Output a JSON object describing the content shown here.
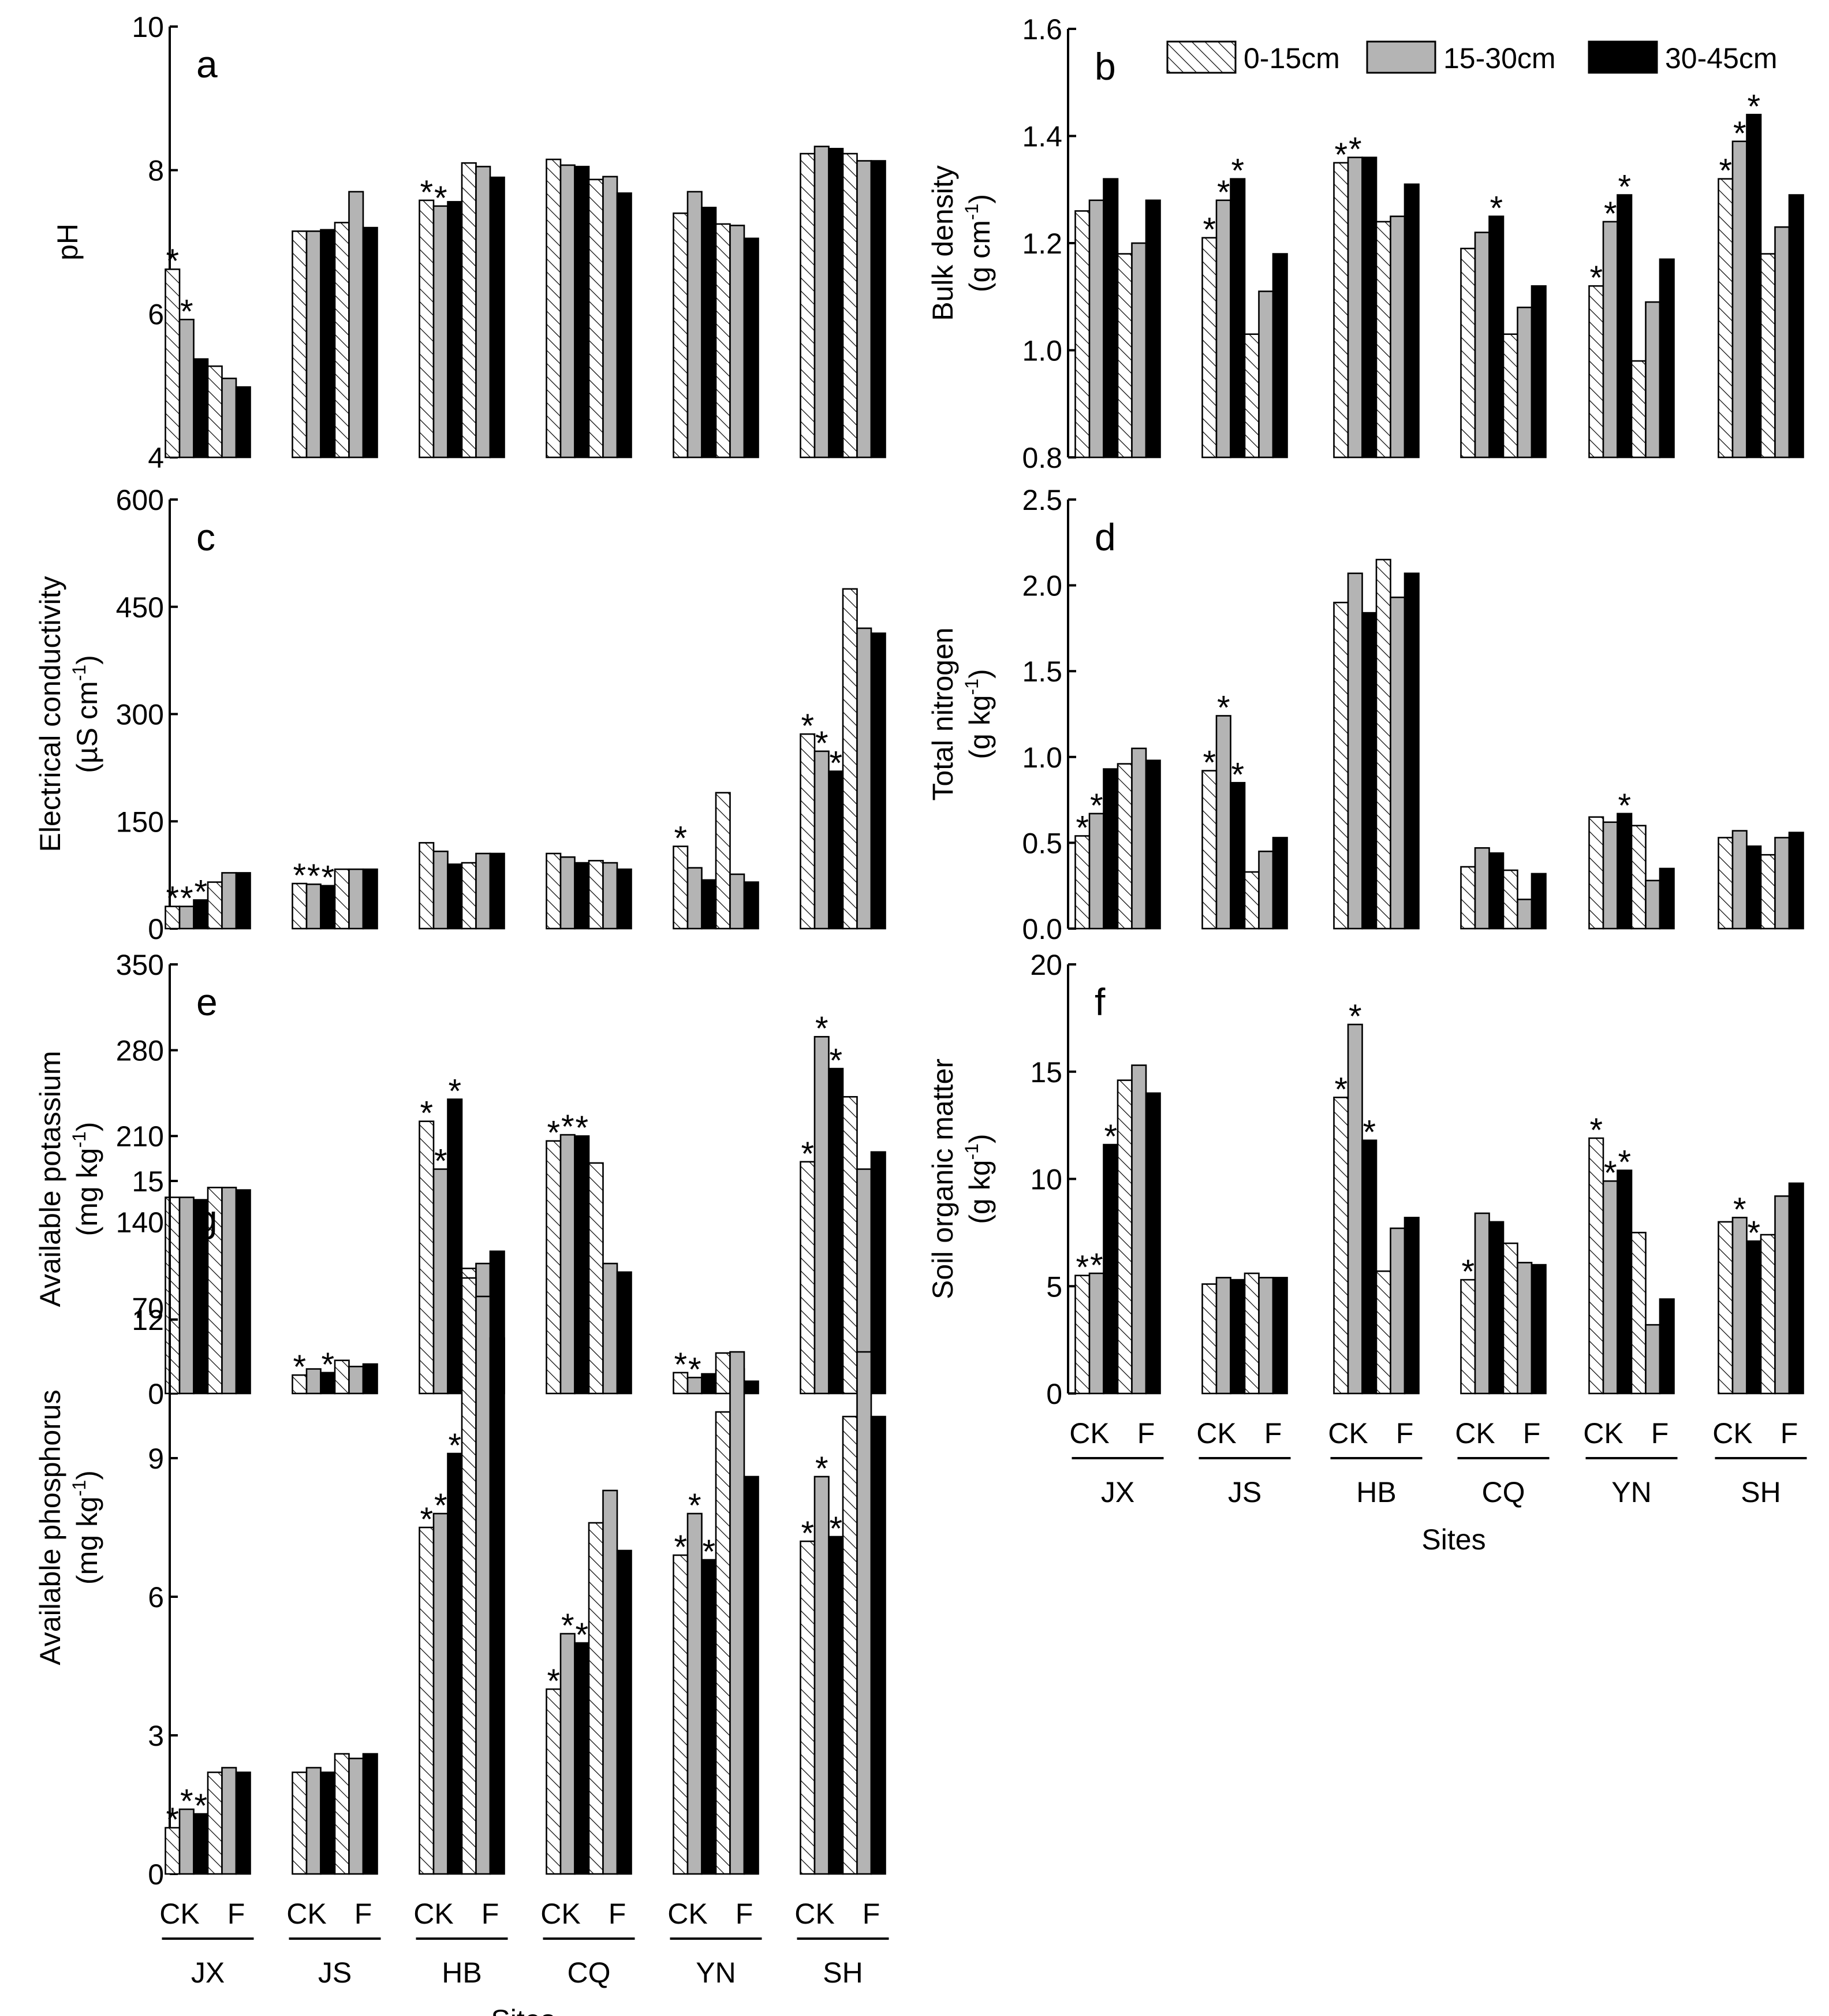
{
  "figure": {
    "xlabel": "Sites",
    "sites": [
      "JX",
      "JS",
      "HB",
      "CQ",
      "YN",
      "SH"
    ],
    "treatments": [
      "CK",
      "F"
    ]
  },
  "legend": {
    "entries": [
      {
        "label": "0-15cm",
        "fill": "hatch"
      },
      {
        "label": "15-30cm",
        "fill": "#b4b4b4"
      },
      {
        "label": "30-45cm",
        "fill": "#000000"
      }
    ]
  },
  "colors": {
    "hatch_bg": "#ffffff",
    "hatch_line": "#000000",
    "mid": "#b4b4b4",
    "deep": "#000000"
  },
  "chart_data": [
    {
      "id": "a",
      "panel_label": "a",
      "type": "bar",
      "ylabel": "pH",
      "ylabel_unit": "",
      "ylim": [
        4,
        10
      ],
      "yticks": [
        4,
        6,
        8,
        10
      ],
      "tick_labels": [
        "4",
        "6",
        "8",
        "10"
      ],
      "series_names": [
        "0-15cm",
        "15-30cm",
        "30-45cm"
      ],
      "values": {
        "JX": {
          "CK": [
            6.62,
            5.92,
            5.37
          ],
          "F": [
            5.27,
            5.1,
            4.98
          ]
        },
        "JS": {
          "CK": [
            7.15,
            7.15,
            7.17
          ],
          "F": [
            7.27,
            7.7,
            7.2
          ]
        },
        "HB": {
          "CK": [
            7.58,
            7.5,
            7.56
          ],
          "F": [
            8.1,
            8.05,
            7.9
          ]
        },
        "CQ": {
          "CK": [
            8.15,
            8.07,
            8.05
          ],
          "F": [
            7.87,
            7.91,
            7.68
          ]
        },
        "YN": {
          "CK": [
            7.4,
            7.7,
            7.48
          ],
          "F": [
            7.25,
            7.23,
            7.05
          ]
        },
        "SH": {
          "CK": [
            8.23,
            8.33,
            8.3
          ],
          "F": [
            8.23,
            8.13,
            8.13
          ]
        }
      },
      "significant": {
        "JX": [
          true,
          true,
          false
        ],
        "JS": [
          false,
          false,
          false
        ],
        "HB": [
          true,
          true,
          false
        ],
        "CQ": [
          false,
          false,
          false
        ],
        "YN": [
          false,
          false,
          false
        ],
        "SH": [
          false,
          false,
          false
        ]
      },
      "show_xaxis": false
    },
    {
      "id": "b",
      "panel_label": "b",
      "type": "bar",
      "ylabel": "Bulk density",
      "ylabel_unit": "(g cm",
      "ylabel_sup": "-1",
      "ylabel_close": ")",
      "ylim": [
        0.8,
        1.6
      ],
      "yticks": [
        0.8,
        1.0,
        1.2,
        1.4,
        1.6
      ],
      "tick_labels": [
        "0.8",
        "1.0",
        "1.2",
        "1.4",
        "1.6"
      ],
      "series_names": [
        "0-15cm",
        "15-30cm",
        "30-45cm"
      ],
      "values": {
        "JX": {
          "CK": [
            1.26,
            1.28,
            1.32
          ],
          "F": [
            1.18,
            1.2,
            1.28
          ]
        },
        "JS": {
          "CK": [
            1.21,
            1.28,
            1.32
          ],
          "F": [
            1.03,
            1.11,
            1.18
          ]
        },
        "HB": {
          "CK": [
            1.35,
            1.36,
            1.36
          ],
          "F": [
            1.24,
            1.25,
            1.31
          ]
        },
        "CQ": {
          "CK": [
            1.19,
            1.22,
            1.25
          ],
          "F": [
            1.03,
            1.08,
            1.12
          ]
        },
        "YN": {
          "CK": [
            1.12,
            1.24,
            1.29
          ],
          "F": [
            0.98,
            1.09,
            1.17
          ]
        },
        "SH": {
          "CK": [
            1.32,
            1.39,
            1.44
          ],
          "F": [
            1.18,
            1.23,
            1.29
          ]
        }
      },
      "significant": {
        "JX": [
          false,
          false,
          false
        ],
        "JS": [
          true,
          true,
          true
        ],
        "HB": [
          true,
          true,
          false
        ],
        "CQ": [
          false,
          false,
          true
        ],
        "YN": [
          true,
          true,
          true
        ],
        "SH": [
          true,
          true,
          true
        ]
      },
      "show_xaxis": false
    },
    {
      "id": "c",
      "panel_label": "c",
      "type": "bar",
      "ylabel": "Electrical conductivity",
      "ylabel_unit": "(µS cm",
      "ylabel_sup": "-1",
      "ylabel_close": ")",
      "ylim": [
        0,
        600
      ],
      "yticks": [
        0,
        150,
        300,
        450,
        600
      ],
      "tick_labels": [
        "0",
        "150",
        "300",
        "450",
        "600"
      ],
      "series_names": [
        "0-15cm",
        "15-30cm",
        "30-45cm"
      ],
      "values": {
        "JX": {
          "CK": [
            31,
            31,
            40
          ],
          "F": [
            65,
            78,
            78
          ]
        },
        "JS": {
          "CK": [
            63,
            62,
            60
          ],
          "F": [
            83,
            83,
            83
          ]
        },
        "HB": {
          "CK": [
            120,
            108,
            90
          ],
          "F": [
            92,
            105,
            105
          ]
        },
        "CQ": {
          "CK": [
            105,
            100,
            92
          ],
          "F": [
            95,
            92,
            83
          ]
        },
        "YN": {
          "CK": [
            115,
            85,
            68
          ],
          "F": [
            190,
            76,
            65
          ]
        },
        "SH": {
          "CK": [
            272,
            248,
            220
          ],
          "F": [
            475,
            420,
            413
          ]
        }
      },
      "significant": {
        "JX": [
          true,
          true,
          true
        ],
        "JS": [
          true,
          true,
          true
        ],
        "HB": [
          false,
          false,
          false
        ],
        "CQ": [
          false,
          false,
          false
        ],
        "YN": [
          true,
          false,
          false
        ],
        "SH": [
          true,
          true,
          true
        ]
      },
      "show_xaxis": false
    },
    {
      "id": "d",
      "panel_label": "d",
      "type": "bar",
      "ylabel": "Total nitrogen",
      "ylabel_unit": "(g kg",
      "ylabel_sup": "-1",
      "ylabel_close": ")",
      "ylim": [
        0,
        2.5
      ],
      "yticks": [
        0,
        0.5,
        1.0,
        1.5,
        2.0,
        2.5
      ],
      "tick_labels": [
        "0.0",
        "0.5",
        "1.0",
        "1.5",
        "2.0",
        "2.5"
      ],
      "series_names": [
        "0-15cm",
        "15-30cm",
        "30-45cm"
      ],
      "values": {
        "JX": {
          "CK": [
            0.54,
            0.67,
            0.93
          ],
          "F": [
            0.96,
            1.05,
            0.98
          ]
        },
        "JS": {
          "CK": [
            0.92,
            1.24,
            0.85
          ],
          "F": [
            0.33,
            0.45,
            0.53
          ]
        },
        "HB": {
          "CK": [
            1.9,
            2.07,
            1.84
          ],
          "F": [
            2.15,
            1.93,
            2.07
          ]
        },
        "CQ": {
          "CK": [
            0.36,
            0.47,
            0.44
          ],
          "F": [
            0.34,
            0.17,
            0.32
          ]
        },
        "YN": {
          "CK": [
            0.65,
            0.62,
            0.67
          ],
          "F": [
            0.6,
            0.28,
            0.35
          ]
        },
        "SH": {
          "CK": [
            0.53,
            0.57,
            0.48
          ],
          "F": [
            0.43,
            0.53,
            0.56
          ]
        }
      },
      "significant": {
        "JX": [
          true,
          true,
          false
        ],
        "JS": [
          true,
          true,
          true
        ],
        "HB": [
          false,
          false,
          false
        ],
        "CQ": [
          false,
          false,
          false
        ],
        "YN": [
          false,
          false,
          true
        ],
        "SH": [
          false,
          false,
          false
        ]
      },
      "show_xaxis": false
    },
    {
      "id": "e",
      "panel_label": "e",
      "type": "bar",
      "ylabel": "Available potassium",
      "ylabel_unit": "(mg kg",
      "ylabel_sup": "-1",
      "ylabel_close": ")",
      "ylim": [
        0,
        350
      ],
      "yticks": [
        0,
        70,
        140,
        210,
        280,
        350
      ],
      "tick_labels": [
        "0",
        "70",
        "140",
        "210",
        "280",
        "350"
      ],
      "series_names": [
        "0-15cm",
        "15-30cm",
        "30-45cm"
      ],
      "values": {
        "JX": {
          "CK": [
            160,
            160,
            158
          ],
          "F": [
            168,
            168,
            166
          ]
        },
        "JS": {
          "CK": [
            15,
            20,
            17
          ],
          "F": [
            27,
            22,
            24
          ]
        },
        "HB": {
          "CK": [
            222,
            183,
            240
          ],
          "F": [
            102,
            106,
            116
          ]
        },
        "CQ": {
          "CK": [
            206,
            211,
            210
          ],
          "F": [
            188,
            106,
            99
          ]
        },
        "YN": {
          "CK": [
            17,
            13,
            16
          ],
          "F": [
            33,
            20,
            10
          ]
        },
        "SH": {
          "CK": [
            189,
            291,
            265
          ],
          "F": [
            242,
            183,
            197
          ]
        }
      },
      "significant": {
        "JX": [
          false,
          false,
          false
        ],
        "JS": [
          true,
          false,
          true
        ],
        "HB": [
          true,
          true,
          true
        ],
        "CQ": [
          true,
          true,
          true
        ],
        "YN": [
          true,
          true,
          false
        ],
        "SH": [
          true,
          true,
          true
        ]
      },
      "show_xaxis": false
    },
    {
      "id": "f",
      "panel_label": "f",
      "type": "bar",
      "ylabel": "Soil organic matter",
      "ylabel_unit": "(g kg",
      "ylabel_sup": "-1",
      "ylabel_close": ")",
      "ylim": [
        0,
        20
      ],
      "yticks": [
        0,
        5,
        10,
        15,
        20
      ],
      "tick_labels": [
        "0",
        "5",
        "10",
        "15",
        "20"
      ],
      "series_names": [
        "0-15cm",
        "15-30cm",
        "30-45cm"
      ],
      "values": {
        "JX": {
          "CK": [
            5.5,
            5.6,
            11.6
          ],
          "F": [
            14.6,
            15.3,
            14.0
          ]
        },
        "JS": {
          "CK": [
            5.1,
            5.4,
            5.3
          ],
          "F": [
            5.6,
            5.4,
            5.4
          ]
        },
        "HB": {
          "CK": [
            13.8,
            17.2,
            11.8
          ],
          "F": [
            5.7,
            7.7,
            8.2
          ]
        },
        "CQ": {
          "CK": [
            5.3,
            8.4,
            8.0
          ],
          "F": [
            7.0,
            6.1,
            6.0
          ]
        },
        "YN": {
          "CK": [
            11.9,
            9.9,
            10.4
          ],
          "F": [
            7.5,
            3.2,
            4.4
          ]
        },
        "SH": {
          "CK": [
            8.0,
            8.2,
            7.1
          ],
          "F": [
            7.4,
            9.2,
            9.8
          ]
        }
      },
      "significant": {
        "JX": [
          true,
          true,
          true
        ],
        "JS": [
          false,
          false,
          false
        ],
        "HB": [
          true,
          true,
          true
        ],
        "CQ": [
          true,
          false,
          false
        ],
        "YN": [
          true,
          true,
          true
        ],
        "SH": [
          false,
          true,
          true
        ]
      },
      "show_xaxis": true
    },
    {
      "id": "g",
      "panel_label": "g",
      "type": "bar",
      "ylabel": "Available phosphorus",
      "ylabel_unit": "(mg kg",
      "ylabel_sup": "-1",
      "ylabel_close": ")",
      "ylim": [
        0,
        15
      ],
      "yticks": [
        0,
        3,
        6,
        9,
        12,
        15
      ],
      "tick_labels": [
        "0",
        "3",
        "6",
        "9",
        "12",
        "15"
      ],
      "series_names": [
        "0-15cm",
        "15-30cm",
        "30-45cm"
      ],
      "values": {
        "JX": {
          "CK": [
            1.0,
            1.4,
            1.3
          ],
          "F": [
            2.2,
            2.3,
            2.2
          ]
        },
        "JS": {
          "CK": [
            2.2,
            2.3,
            2.2
          ],
          "F": [
            2.6,
            2.5,
            2.6
          ]
        },
        "HB": {
          "CK": [
            7.5,
            7.8,
            9.1
          ],
          "F": [
            12.9,
            12.5,
            11.6
          ]
        },
        "CQ": {
          "CK": [
            4.0,
            5.2,
            5.0
          ],
          "F": [
            7.6,
            8.3,
            7.0
          ]
        },
        "YN": {
          "CK": [
            6.9,
            7.8,
            6.8
          ],
          "F": [
            10.0,
            11.3,
            8.6
          ]
        },
        "SH": {
          "CK": [
            7.2,
            8.6,
            7.3
          ],
          "F": [
            9.9,
            11.3,
            9.9
          ]
        }
      },
      "significant": {
        "JX": [
          true,
          true,
          true
        ],
        "JS": [
          false,
          false,
          false
        ],
        "HB": [
          true,
          true,
          true
        ],
        "CQ": [
          true,
          true,
          true
        ],
        "YN": [
          true,
          true,
          true
        ],
        "SH": [
          true,
          true,
          true
        ]
      },
      "show_xaxis": true
    }
  ]
}
